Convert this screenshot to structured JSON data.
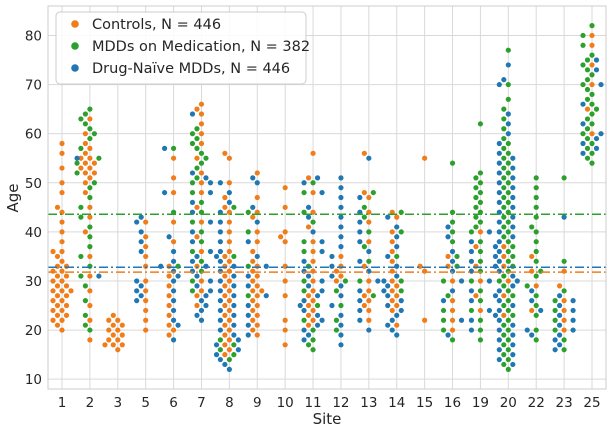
{
  "chart_data": {
    "type": "scatter",
    "style": "swarm",
    "xlabel": "Site",
    "ylabel": "Age",
    "categories": [
      "1",
      "2",
      "3",
      "5",
      "6",
      "7",
      "8",
      "9",
      "10",
      "11",
      "12",
      "13",
      "14",
      "15",
      "16",
      "19",
      "20",
      "22",
      "23",
      "25"
    ],
    "ylim": [
      8,
      86
    ],
    "yticks": [
      10,
      20,
      30,
      40,
      50,
      60,
      70,
      80
    ],
    "grid": true,
    "legend_position": "top-left",
    "colors": {
      "controls": "#f07c1a",
      "mdd_med": "#2ca02c",
      "drug_naive": "#1f77b4",
      "grid": "#d9d9d9",
      "frame": "#cccccc"
    },
    "series": [
      {
        "name": "Controls, N = 446",
        "color": "#f07c1a",
        "mean_line": 31.8,
        "sites": {
          "1": [
            58,
            56,
            53,
            50,
            48,
            45,
            44,
            42,
            40,
            38,
            36,
            36,
            35,
            34,
            33,
            33,
            32,
            32,
            31,
            31,
            30,
            30,
            29,
            29,
            28,
            28,
            28,
            27,
            27,
            26,
            26,
            25,
            25,
            24,
            24,
            23,
            23,
            22,
            22,
            21,
            20
          ],
          "2": [
            63,
            60,
            58,
            57,
            56,
            55,
            55,
            54,
            54,
            53,
            53,
            52,
            52,
            51,
            50,
            48,
            45,
            43,
            40,
            35,
            31,
            28,
            25,
            22,
            18
          ],
          "3": [
            23,
            22,
            22,
            21,
            21,
            20,
            20,
            19,
            19,
            18,
            18,
            17,
            17,
            17,
            16
          ],
          "5": [
            42,
            39,
            37,
            35,
            33,
            30,
            28,
            26,
            24,
            22,
            20
          ],
          "6": [
            55,
            51,
            48,
            42,
            38,
            33,
            31,
            29,
            27,
            25,
            23,
            21,
            20,
            19
          ],
          "7": [
            66,
            65,
            64,
            62,
            60,
            58,
            55,
            52,
            50,
            48,
            45,
            42,
            39,
            36,
            33,
            30,
            28,
            27,
            25
          ],
          "8": [
            56,
            55,
            50,
            47,
            45,
            44,
            42,
            40,
            38,
            36,
            35,
            34,
            33,
            32,
            31,
            30,
            29,
            28,
            27,
            26,
            25,
            24,
            23,
            22,
            21,
            20,
            19,
            18,
            17,
            16,
            15
          ],
          "9": [
            52,
            47,
            44,
            43,
            40,
            38,
            36,
            34,
            33,
            32,
            31,
            30,
            29,
            28,
            28,
            27,
            26,
            25,
            24,
            23,
            22,
            21,
            20,
            19
          ],
          "10": [
            49,
            45,
            40,
            39,
            38,
            33,
            30,
            27,
            22,
            20,
            17
          ],
          "11": [
            56,
            51,
            48,
            44,
            41,
            38,
            36,
            34,
            32,
            30,
            28,
            27,
            26,
            25,
            24,
            23,
            22,
            21
          ],
          "12": [
            35,
            33,
            32,
            31,
            30
          ],
          "13": [
            56,
            48,
            47,
            44,
            42,
            38,
            33,
            30,
            28,
            27,
            26,
            25,
            24,
            22
          ],
          "14": [
            44,
            43,
            40,
            38,
            36,
            34,
            32,
            30,
            29,
            28,
            27,
            26,
            25,
            24,
            21
          ],
          "15": [
            55,
            33,
            32,
            22
          ],
          "16": [
            35,
            33,
            30,
            26,
            24,
            22,
            20
          ],
          "19": [
            40,
            37,
            33,
            30,
            27,
            24
          ],
          "20": [
            37,
            35,
            33,
            30,
            27,
            23
          ],
          "22": [
            35,
            32,
            29,
            24
          ],
          "23": [
            32,
            29,
            26,
            24,
            22,
            20
          ],
          "25": [
            80,
            78,
            74,
            70,
            65,
            60
          ]
        }
      },
      {
        "name": "MDDs on Medication, N = 382",
        "color": "#2ca02c",
        "mean_line": 43.6,
        "sites": {
          "1": [],
          "3": [],
          "2": [
            65,
            64,
            63,
            62,
            61,
            60,
            59,
            57,
            55,
            54,
            52,
            50,
            49,
            47,
            45,
            43,
            41,
            39,
            37,
            35,
            33,
            31,
            29,
            26,
            23,
            21,
            20
          ],
          "5": [],
          "6": [
            57,
            44,
            33
          ],
          "7": [
            61,
            60,
            59,
            58,
            57,
            56,
            55,
            54,
            53,
            51,
            50,
            48,
            46,
            44,
            42,
            40,
            38,
            36,
            34,
            32,
            30,
            28
          ],
          "8": [
            45,
            35,
            18,
            17,
            16,
            15,
            14
          ],
          "9": [
            44,
            40,
            33,
            27
          ],
          "10": [],
          "11": [
            50,
            48,
            44,
            42,
            38,
            36,
            33,
            30,
            28,
            25,
            22,
            20,
            18,
            17,
            16
          ],
          "12": [
            30,
            28,
            25,
            22,
            20
          ],
          "13": [
            48,
            45,
            43,
            40,
            37,
            34,
            30,
            27
          ],
          "14": [
            44,
            40,
            35,
            30,
            28
          ],
          "15": [],
          "16": [
            54,
            44,
            42,
            40,
            38,
            35,
            33,
            30,
            27,
            24,
            22,
            20,
            18
          ],
          "19": [
            62,
            52,
            51,
            50,
            49,
            48,
            47,
            46,
            45,
            44,
            43,
            42,
            41,
            40,
            38,
            36,
            34,
            32,
            30,
            28,
            26,
            24,
            22,
            20,
            18
          ],
          "20": [
            77,
            70,
            67,
            65,
            63,
            61,
            59,
            58,
            57,
            56,
            55,
            54,
            53,
            52,
            51,
            50,
            49,
            48,
            47,
            46,
            45,
            44,
            43,
            42,
            41,
            40,
            39,
            38,
            37,
            36,
            35,
            34,
            33,
            32,
            31,
            30,
            29,
            28,
            27,
            26,
            25,
            24,
            23,
            22,
            21,
            20,
            19,
            18,
            17,
            16,
            15,
            14,
            13,
            12
          ],
          "22": [
            51,
            49,
            47,
            45,
            43,
            41,
            40,
            38,
            36,
            34,
            32,
            31,
            29,
            27,
            25,
            23,
            20,
            18
          ],
          "23": [
            51,
            34,
            28,
            26,
            24,
            22,
            20,
            18,
            16
          ],
          "25": [
            82,
            80,
            78,
            76,
            75,
            74,
            73,
            72,
            71,
            70,
            69,
            68,
            67,
            66,
            65,
            64,
            63,
            62,
            61,
            60,
            59,
            58,
            57,
            56,
            55,
            54
          ]
        }
      },
      {
        "name": "Drug-Naïve MDDs, N = 446",
        "color": "#1f77b4",
        "mean_line": 32.8,
        "sites": {
          "1": [],
          "3": [],
          "2": [
            55,
            31
          ],
          "5": [
            43,
            42,
            40,
            38,
            36,
            30,
            29,
            28,
            27,
            26
          ],
          "6": [
            57,
            48,
            39,
            36,
            34,
            33,
            32,
            31,
            30,
            28,
            26,
            24,
            22,
            21,
            18
          ],
          "7": [
            64,
            52,
            51,
            50,
            48,
            46,
            44,
            42,
            40,
            38,
            36,
            35,
            34,
            33,
            32,
            31,
            30,
            29,
            28,
            27,
            26,
            25,
            24,
            23,
            22
          ],
          "8": [
            50,
            48,
            46,
            44,
            42,
            40,
            38,
            36,
            35,
            34,
            33,
            32,
            31,
            30,
            29,
            28,
            27,
            26,
            25,
            24,
            23,
            22,
            21,
            20,
            19,
            18,
            17,
            16,
            15,
            14,
            13,
            12
          ],
          "9": [
            51,
            50,
            45,
            42,
            38,
            35,
            33,
            31,
            29,
            27,
            25,
            23,
            21,
            19
          ],
          "10": [],
          "11": [
            51,
            50,
            48,
            45,
            43,
            40,
            38,
            36,
            34,
            32,
            31,
            30,
            29,
            28,
            27,
            26,
            25,
            24,
            23,
            22,
            21,
            20,
            19,
            18
          ],
          "12": [
            51,
            49,
            47,
            45,
            43,
            41,
            39,
            37,
            35,
            33,
            31,
            29,
            27,
            25,
            23,
            21,
            19,
            17
          ],
          "13": [
            55,
            47,
            44,
            42,
            40,
            38,
            36,
            34,
            32,
            30,
            28,
            26,
            24,
            22,
            20
          ],
          "14": [
            43,
            41,
            39,
            37,
            35,
            33,
            31,
            30,
            29,
            28,
            27,
            26,
            25,
            24,
            23,
            22,
            21,
            20,
            19
          ],
          "15": [],
          "16": [
            41,
            39,
            36,
            34,
            32,
            30,
            28,
            26,
            22,
            19
          ],
          "19": [
            40,
            38,
            36,
            34,
            32,
            30,
            28,
            26,
            24,
            22,
            20
          ],
          "20": [
            74,
            71,
            70,
            64,
            62,
            60,
            58,
            56,
            55,
            54,
            53,
            52,
            51,
            50,
            49,
            48,
            47,
            46,
            45,
            44,
            43,
            42,
            41,
            40,
            39,
            38,
            37,
            36,
            35,
            34,
            33,
            32,
            31,
            30,
            29,
            28,
            27,
            26,
            25,
            24,
            23,
            22,
            21,
            20,
            19,
            18,
            17,
            16,
            15,
            14,
            13
          ],
          "22": [
            28,
            26,
            24,
            20,
            19
          ],
          "23": [
            43,
            27,
            26,
            25,
            24,
            23,
            22,
            21,
            20,
            19,
            18,
            17,
            16
          ],
          "25": [
            75,
            73,
            70,
            66,
            62,
            60,
            59,
            58,
            57,
            56
          ]
        }
      }
    ]
  }
}
